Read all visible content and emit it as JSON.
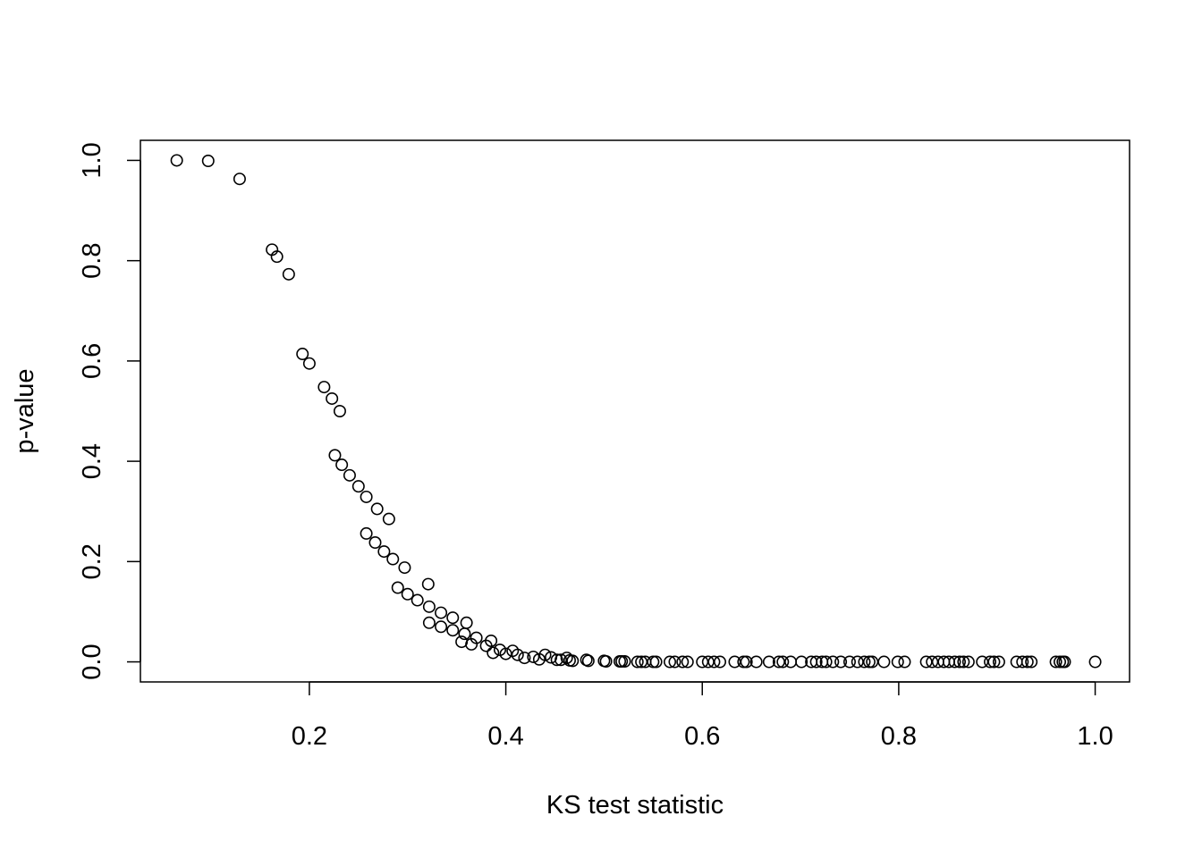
{
  "chart_data": {
    "type": "scatter",
    "title": "",
    "xlabel": "KS test statistic",
    "ylabel": "p-value",
    "xlim": [
      0.028,
      1.035
    ],
    "ylim": [
      -0.04,
      1.04
    ],
    "x_ticks": [
      0.2,
      0.4,
      0.6,
      0.8,
      1.0
    ],
    "y_ticks": [
      0.0,
      0.2,
      0.4,
      0.6,
      0.8,
      1.0
    ],
    "x_tick_labels": [
      "0.2",
      "0.4",
      "0.6",
      "0.8",
      "1.0"
    ],
    "y_tick_labels": [
      "0.0",
      "0.2",
      "0.4",
      "0.6",
      "0.8",
      "1.0"
    ],
    "grid": false,
    "legend": "none",
    "marker": "open-circle",
    "color": "#000000",
    "points": [
      [
        0.065,
        1.0
      ],
      [
        0.097,
        0.999
      ],
      [
        0.129,
        0.963
      ],
      [
        0.162,
        0.822
      ],
      [
        0.167,
        0.808
      ],
      [
        0.179,
        0.773
      ],
      [
        0.193,
        0.614
      ],
      [
        0.2,
        0.595
      ],
      [
        0.215,
        0.548
      ],
      [
        0.223,
        0.525
      ],
      [
        0.231,
        0.5
      ],
      [
        0.226,
        0.412
      ],
      [
        0.233,
        0.393
      ],
      [
        0.241,
        0.372
      ],
      [
        0.25,
        0.35
      ],
      [
        0.258,
        0.329
      ],
      [
        0.269,
        0.305
      ],
      [
        0.281,
        0.285
      ],
      [
        0.258,
        0.256
      ],
      [
        0.267,
        0.238
      ],
      [
        0.276,
        0.22
      ],
      [
        0.285,
        0.205
      ],
      [
        0.297,
        0.188
      ],
      [
        0.29,
        0.148
      ],
      [
        0.3,
        0.135
      ],
      [
        0.31,
        0.123
      ],
      [
        0.322,
        0.11
      ],
      [
        0.334,
        0.098
      ],
      [
        0.346,
        0.088
      ],
      [
        0.321,
        0.155
      ],
      [
        0.322,
        0.078
      ],
      [
        0.334,
        0.07
      ],
      [
        0.346,
        0.063
      ],
      [
        0.358,
        0.056
      ],
      [
        0.36,
        0.078
      ],
      [
        0.355,
        0.04
      ],
      [
        0.365,
        0.035
      ],
      [
        0.37,
        0.048
      ],
      [
        0.38,
        0.032
      ],
      [
        0.385,
        0.042
      ],
      [
        0.387,
        0.018
      ],
      [
        0.394,
        0.024
      ],
      [
        0.4,
        0.016
      ],
      [
        0.407,
        0.022
      ],
      [
        0.412,
        0.014
      ],
      [
        0.419,
        0.008
      ],
      [
        0.428,
        0.01
      ],
      [
        0.434,
        0.005
      ],
      [
        0.44,
        0.014
      ],
      [
        0.446,
        0.009
      ],
      [
        0.452,
        0.004
      ],
      [
        0.456,
        0.004
      ],
      [
        0.462,
        0.008
      ],
      [
        0.465,
        0.003
      ],
      [
        0.468,
        0.002
      ],
      [
        0.482,
        0.004
      ],
      [
        0.484,
        0.002
      ],
      [
        0.5,
        0.002
      ],
      [
        0.502,
        0.001
      ],
      [
        0.516,
        0.001
      ],
      [
        0.518,
        0.001
      ],
      [
        0.521,
        0.001
      ],
      [
        0.534,
        0.0
      ],
      [
        0.538,
        0.0
      ],
      [
        0.542,
        0.0
      ],
      [
        0.55,
        0.0
      ],
      [
        0.553,
        0.0
      ],
      [
        0.567,
        0.0
      ],
      [
        0.572,
        0.0
      ],
      [
        0.58,
        0.0
      ],
      [
        0.585,
        0.0
      ],
      [
        0.6,
        0.0
      ],
      [
        0.606,
        0.0
      ],
      [
        0.612,
        0.0
      ],
      [
        0.618,
        0.0
      ],
      [
        0.633,
        0.0
      ],
      [
        0.642,
        0.0
      ],
      [
        0.645,
        0.0
      ],
      [
        0.655,
        0.0
      ],
      [
        0.668,
        0.0
      ],
      [
        0.678,
        0.0
      ],
      [
        0.682,
        0.0
      ],
      [
        0.69,
        0.0
      ],
      [
        0.701,
        0.0
      ],
      [
        0.711,
        0.0
      ],
      [
        0.716,
        0.0
      ],
      [
        0.722,
        0.0
      ],
      [
        0.726,
        0.0
      ],
      [
        0.733,
        0.0
      ],
      [
        0.741,
        0.0
      ],
      [
        0.75,
        0.0
      ],
      [
        0.758,
        0.0
      ],
      [
        0.765,
        0.0
      ],
      [
        0.77,
        0.0
      ],
      [
        0.773,
        0.0
      ],
      [
        0.785,
        0.0
      ],
      [
        0.799,
        0.0
      ],
      [
        0.806,
        0.0
      ],
      [
        0.828,
        0.0
      ],
      [
        0.834,
        0.0
      ],
      [
        0.84,
        0.0
      ],
      [
        0.846,
        0.0
      ],
      [
        0.851,
        0.0
      ],
      [
        0.857,
        0.0
      ],
      [
        0.862,
        0.0
      ],
      [
        0.866,
        0.0
      ],
      [
        0.871,
        0.0
      ],
      [
        0.885,
        0.0
      ],
      [
        0.893,
        0.0
      ],
      [
        0.897,
        0.0
      ],
      [
        0.902,
        0.0
      ],
      [
        0.92,
        0.0
      ],
      [
        0.926,
        0.0
      ],
      [
        0.931,
        0.0
      ],
      [
        0.935,
        0.0
      ],
      [
        0.96,
        0.0
      ],
      [
        0.964,
        0.0
      ],
      [
        0.967,
        0.0
      ],
      [
        0.969,
        0.0
      ],
      [
        1.0,
        0.0
      ]
    ]
  }
}
